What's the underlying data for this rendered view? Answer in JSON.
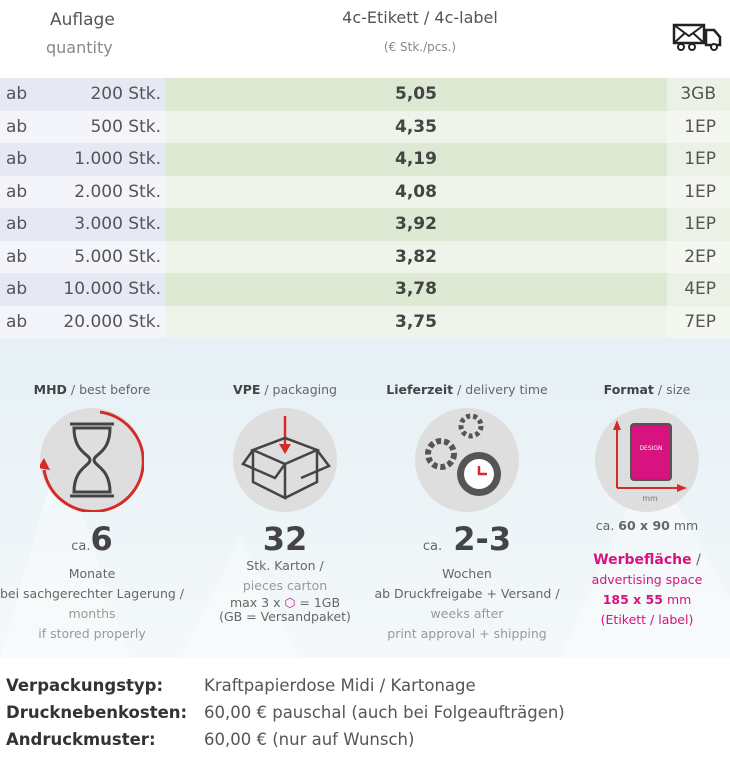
{
  "header": {
    "quantity_de": "Auflage",
    "quantity_en": "quantity",
    "label": "4c-Etikett / 4c-label",
    "unit": "(€ Stk./pcs.)",
    "shipping_icon": "envelope-truck-icon"
  },
  "rows": [
    {
      "prefix": "ab",
      "qty": "200 Stk.",
      "price": "5,05",
      "ship": "3GB"
    },
    {
      "prefix": "ab",
      "qty": "500 Stk.",
      "price": "4,35",
      "ship": "1EP"
    },
    {
      "prefix": "ab",
      "qty": "1.000 Stk.",
      "price": "4,19",
      "ship": "1EP"
    },
    {
      "prefix": "ab",
      "qty": "2.000 Stk.",
      "price": "4,08",
      "ship": "1EP"
    },
    {
      "prefix": "ab",
      "qty": "3.000 Stk.",
      "price": "3,92",
      "ship": "1EP"
    },
    {
      "prefix": "ab",
      "qty": "5.000 Stk.",
      "price": "3,82",
      "ship": "2EP"
    },
    {
      "prefix": "ab",
      "qty": "10.000 Stk.",
      "price": "3,78",
      "ship": "4EP"
    },
    {
      "prefix": "ab",
      "qty": "20.000 Stk.",
      "price": "3,75",
      "ship": "7EP"
    }
  ],
  "info": {
    "mhd": {
      "title_de": "MHD",
      "title_en": " / best before",
      "ca": "ca.",
      "value": "6",
      "l1": "Monate",
      "l2": "bei sachgerechter Lagerung /",
      "l3": "months",
      "l4": "if stored properly"
    },
    "vpe": {
      "title_de": "VPE",
      "title_en": " / packaging",
      "value": "32",
      "l1": "Stk. Karton /",
      "l2": "pieces carton",
      "l3a": "max 3 x",
      "l3b": "= 1GB",
      "l4": "(GB = Versandpaket)"
    },
    "lieferzeit": {
      "title_de": "Lieferzeit",
      "title_en": " / delivery time",
      "ca": "ca.",
      "value": "2-3",
      "l1": "Wochen",
      "l2": "ab Druckfreigabe + Versand /",
      "l3": "weeks after",
      "l4": "print approval + shipping"
    },
    "format": {
      "title_de": "Format",
      "title_en": " / size",
      "icon_mm": "mm",
      "icon_design": "DESIGN",
      "ca": "ca.",
      "size": "60 x 90",
      "unit": "mm",
      "ad_de": "Werbefläche",
      "ad_sep": " /",
      "ad_en": "advertising space",
      "ad_size": "185 x 55",
      "ad_unit": " mm",
      "ad_note": "(Etikett / label)"
    }
  },
  "meta": [
    {
      "key": "Verpackungstyp:",
      "value": "Kraftpapierdose Midi / Kartonage"
    },
    {
      "key": "Drucknebenkosten:",
      "value": "60,00 € pauschal (auch bei Folgeaufträgen)"
    },
    {
      "key": "Andruckmuster:",
      "value": "60,00 € (nur auf Wunsch)"
    }
  ],
  "colors": {
    "accent": "#d6137f",
    "arrow": "#d42a2a"
  }
}
